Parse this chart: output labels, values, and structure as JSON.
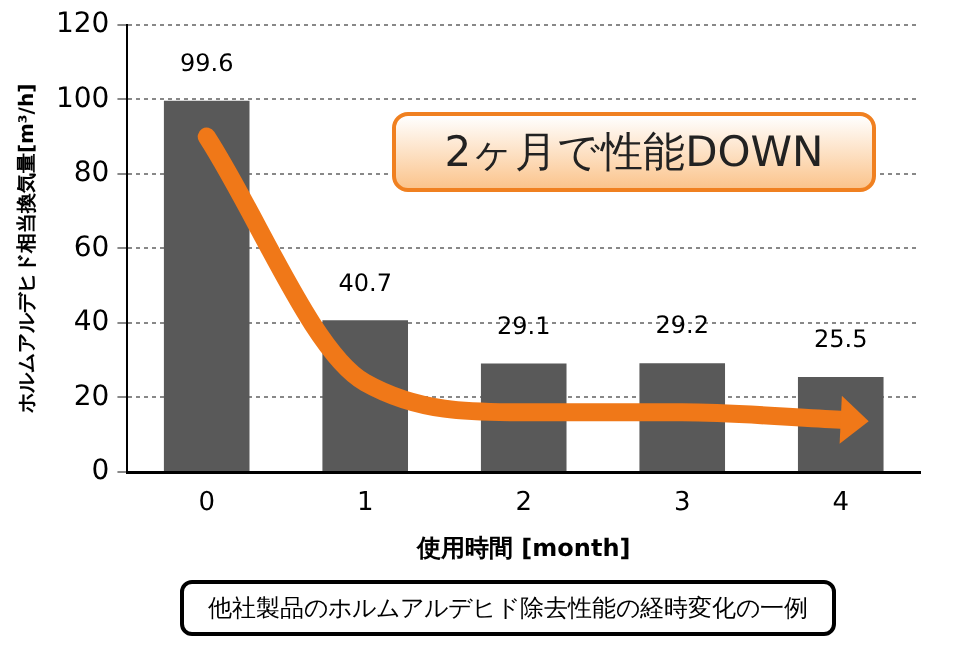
{
  "chart_data": {
    "type": "bar",
    "categories": [
      "0",
      "1",
      "2",
      "3",
      "4"
    ],
    "series": [
      {
        "color": "#595959",
        "values": [
          99.6,
          40.7,
          29.1,
          29.2,
          25.5
        ],
        "value_labels": [
          "99.6",
          "40.7",
          "29.1",
          "29.2",
          "25.5"
        ]
      },
      {
        "type": "line",
        "color": "#f07818",
        "values": [
          90,
          24,
          16,
          16,
          14
        ]
      }
    ],
    "xlabel": "使用時間 [month]",
    "ylabel": "ホルムアルデヒド相当換気量[m³/h]",
    "ylim": [
      0,
      120
    ],
    "yticks": [
      0,
      20,
      40,
      60,
      80,
      100,
      120
    ],
    "grid": "y",
    "legend": false,
    "annotations": [
      "2ヶ月で性能DOWN",
      "他社製品のホルムアルデヒド除去性能の経時変化の一例"
    ]
  }
}
